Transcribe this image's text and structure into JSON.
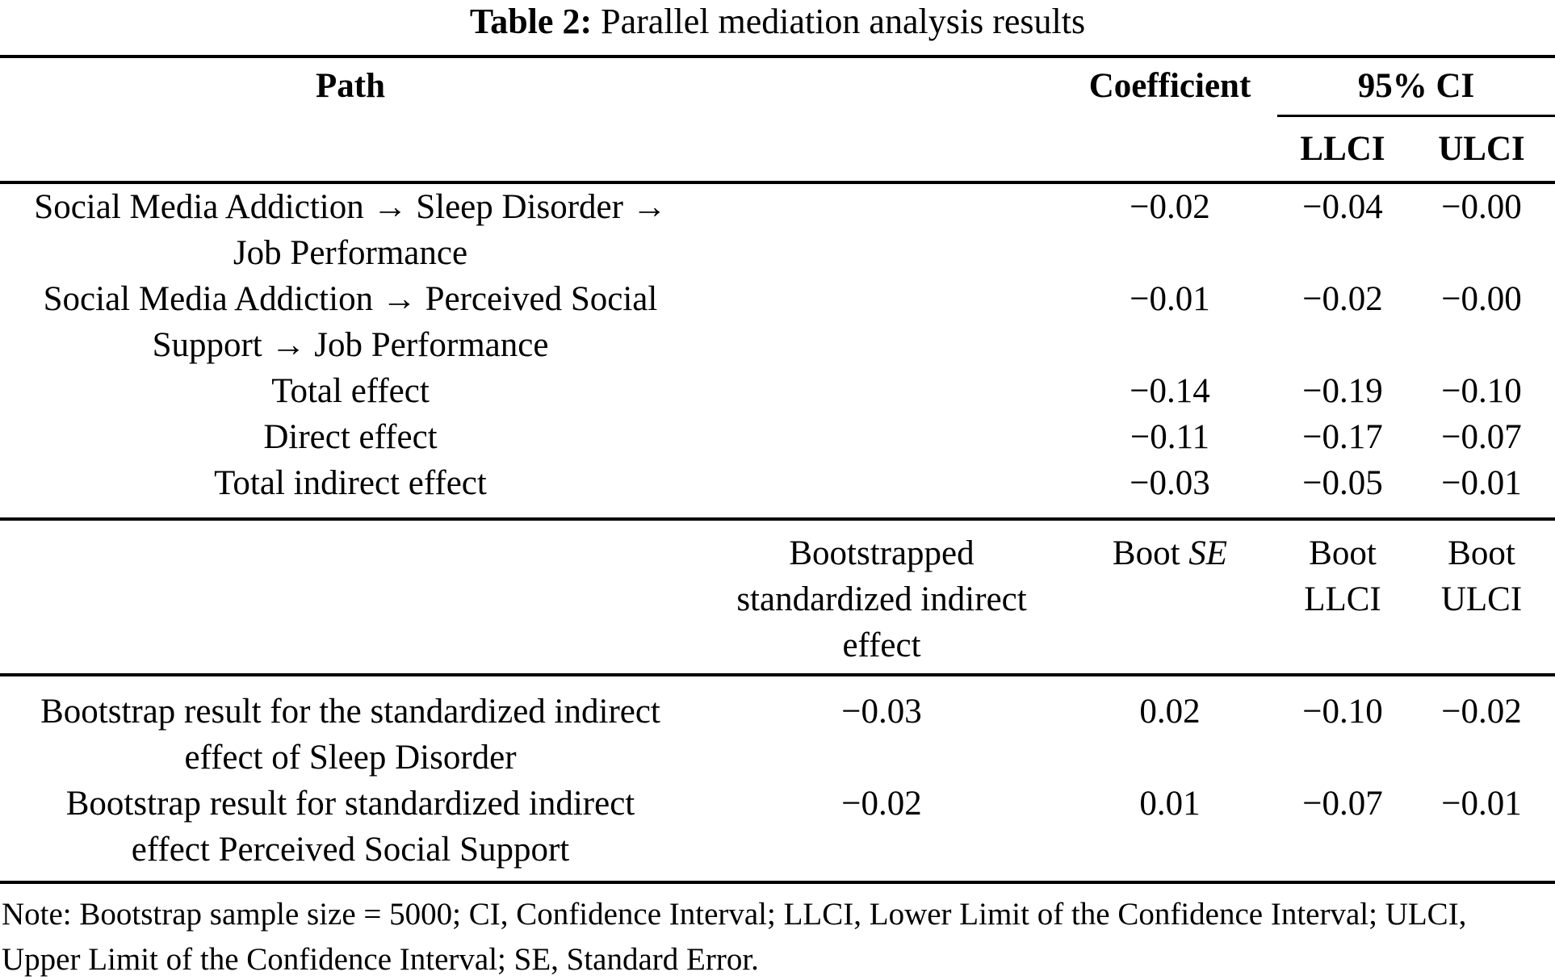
{
  "title": {
    "label": "Table 2:",
    "text": "Parallel mediation analysis results"
  },
  "table": {
    "header": {
      "path": "Path",
      "coefficient": "Coefficient",
      "ci": "95% CI",
      "llci": "LLCI",
      "ulci": "ULCI"
    },
    "rows": [
      {
        "path_lines": [
          "Social Media Addiction → Sleep Disorder →",
          "Job Performance"
        ],
        "coefficient": "−0.02",
        "llci": "−0.04",
        "ulci": "−0.00"
      },
      {
        "path_lines": [
          "Social Media Addiction → Perceived Social",
          "Support → Job Performance"
        ],
        "coefficient": "−0.01",
        "llci": "−0.02",
        "ulci": "−0.00"
      },
      {
        "path_lines": [
          "Total effect"
        ],
        "coefficient": "−0.14",
        "llci": "−0.19",
        "ulci": "−0.10"
      },
      {
        "path_lines": [
          "Direct effect"
        ],
        "coefficient": "−0.11",
        "llci": "−0.17",
        "ulci": "−0.07"
      },
      {
        "path_lines": [
          "Total indirect effect"
        ],
        "coefficient": "−0.03",
        "llci": "−0.05",
        "ulci": "−0.01"
      }
    ],
    "boot_header": {
      "label_lines": [
        "Bootstrapped",
        "standardized indirect",
        "effect"
      ],
      "se_prefix": "Boot ",
      "se_italic": "SE",
      "llci_lines": [
        "Boot",
        "LLCI"
      ],
      "ulci_lines": [
        "Boot",
        "ULCI"
      ]
    },
    "boot_rows": [
      {
        "path_lines": [
          "Bootstrap result for the standardized indirect",
          "effect of Sleep Disorder"
        ],
        "effect": "−0.03",
        "se": "0.02",
        "llci": "−0.10",
        "ulci": "−0.02"
      },
      {
        "path_lines": [
          "Bootstrap result for standardized indirect",
          "effect Perceived Social Support"
        ],
        "effect": "−0.02",
        "se": "0.01",
        "llci": "−0.07",
        "ulci": "−0.01"
      }
    ]
  },
  "note_lines": [
    "Note: Bootstrap sample size = 5000; CI, Confidence Interval; LLCI, Lower Limit of the Confidence Interval; ULCI,",
    "Upper Limit of the Confidence Interval; SE, Standard Error."
  ]
}
